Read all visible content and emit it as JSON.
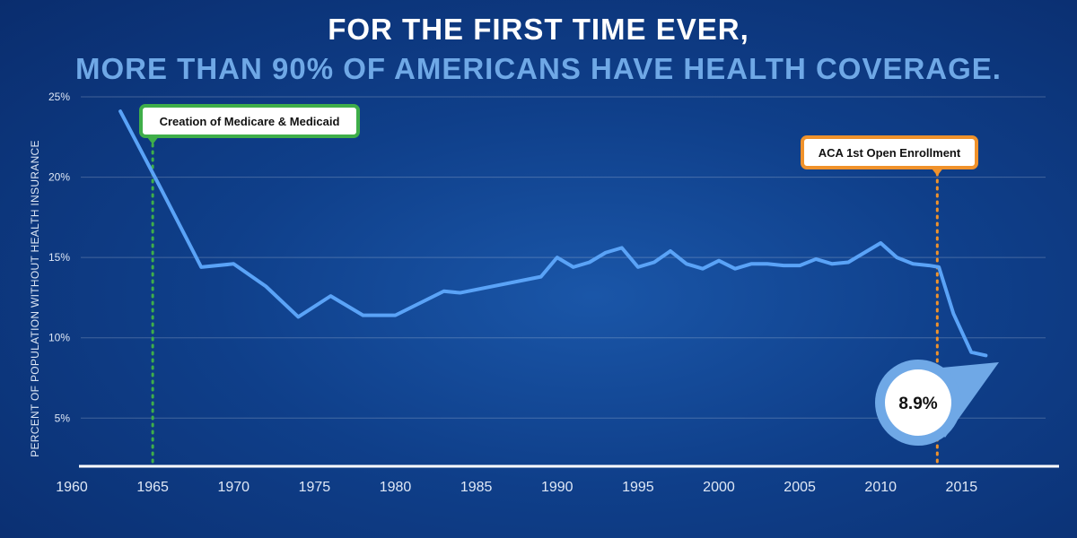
{
  "headline": {
    "line1": "FOR THE FIRST TIME EVER,",
    "line2": "MORE THAN 90% OF AMERICANS HAVE HEALTH COVERAGE.",
    "line2_color": "#6fa8e6"
  },
  "chart_data": {
    "type": "line",
    "title": "FOR THE FIRST TIME EVER, MORE THAN 90% OF AMERICANS HAVE HEALTH COVERAGE.",
    "ylabel": "PERCENT OF POPULATION WITHOUT HEALTH INSURANCE",
    "xlabel": "",
    "xlim": [
      1960,
      2021
    ],
    "ylim": [
      2,
      25
    ],
    "x_ticks": [
      "1960",
      "1965",
      "1970",
      "1975",
      "1980",
      "1985",
      "1990",
      "1995",
      "2000",
      "2005",
      "2010",
      "2015"
    ],
    "y_ticks": [
      "5%",
      "10%",
      "15%",
      "20%",
      "25%"
    ],
    "grid": "horizontal",
    "line_color": "#5aa3f7",
    "series": [
      {
        "x": [
          1963,
          1965.5,
          1968,
          1970,
          1972,
          1974,
          1976,
          1978,
          1980,
          1983,
          1984,
          1989,
          1990,
          1991,
          1992,
          1993,
          1994,
          1995,
          1996,
          1997,
          1998,
          1999,
          2000,
          2001,
          2002,
          2003,
          2004,
          2005,
          2006,
          2007,
          2008,
          2009,
          2010,
          2011,
          2012,
          2013,
          2013.6,
          2014.5,
          2015.6,
          2016.5
        ],
        "y": [
          24.1,
          19.3,
          14.4,
          14.6,
          13.2,
          11.3,
          12.6,
          11.4,
          11.4,
          12.9,
          12.8,
          13.8,
          15.0,
          14.4,
          14.7,
          15.3,
          15.6,
          14.4,
          14.7,
          15.4,
          14.6,
          14.3,
          14.8,
          14.3,
          14.6,
          14.6,
          14.5,
          14.5,
          14.9,
          14.6,
          14.7,
          15.3,
          15.9,
          15.0,
          14.6,
          14.5,
          14.4,
          11.5,
          9.1,
          8.9
        ]
      }
    ],
    "annotations": [
      {
        "label": "Creation of Medicare & Medicaid",
        "x": 1965,
        "color": "#3fae49"
      },
      {
        "label": "ACA 1st Open Enrollment",
        "x": 2013.5,
        "color": "#f0922b"
      }
    ],
    "callout": {
      "label": "8.9%",
      "x": 2016.5,
      "y": 8.9,
      "color": "#6fa8e6"
    }
  }
}
